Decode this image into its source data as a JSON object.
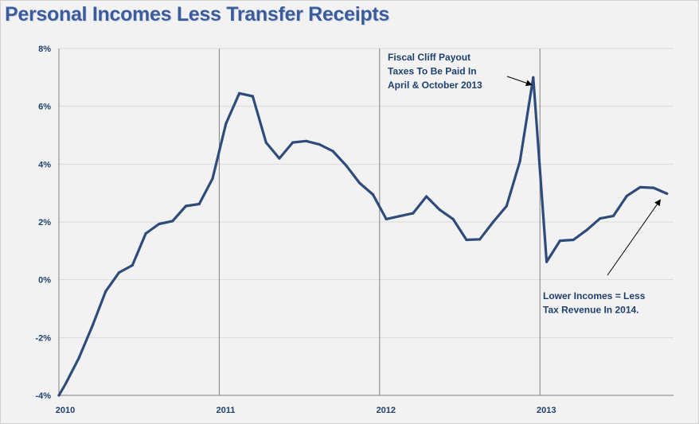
{
  "chart_data": {
    "type": "line",
    "title": "Personal Incomes Less Transfer Receipts",
    "xlabel": "",
    "ylabel": "",
    "ylim": [
      -4,
      8
    ],
    "yticks": [
      8,
      6,
      4,
      2,
      0,
      -2,
      -4
    ],
    "ytick_labels": [
      "8%",
      "6%",
      "4%",
      "2%",
      "0%",
      "-2%",
      "-4%"
    ],
    "xlim": [
      2010.0,
      2013.833
    ],
    "xticks": [
      2010,
      2011,
      2012,
      2013
    ],
    "xtick_labels": [
      "2010",
      "2011",
      "2012",
      "2013"
    ],
    "grid": true,
    "line_color": "#2e4b7a",
    "series": [
      {
        "name": "Personal Incomes Less Transfer Receipts",
        "x": [
          2010.0,
          2010.0417,
          2010.125,
          2010.2083,
          2010.2917,
          2010.375,
          2010.4583,
          2010.5417,
          2010.625,
          2010.7083,
          2010.7917,
          2010.875,
          2010.9583,
          2011.0417,
          2011.125,
          2011.2083,
          2011.2917,
          2011.375,
          2011.4583,
          2011.5417,
          2011.625,
          2011.7083,
          2011.7917,
          2011.875,
          2011.9583,
          2012.0417,
          2012.125,
          2012.2083,
          2012.2917,
          2012.375,
          2012.4583,
          2012.5417,
          2012.625,
          2012.7083,
          2012.7917,
          2012.875,
          2012.9583,
          2013.0417,
          2013.125,
          2013.2083,
          2013.2917,
          2013.375,
          2013.4583,
          2013.5417,
          2013.625,
          2013.7083,
          2013.7917
        ],
        "values": [
          -4.0,
          -3.6,
          -2.7,
          -1.6,
          -0.4,
          0.25,
          0.5,
          1.6,
          1.93,
          2.03,
          2.55,
          2.62,
          3.5,
          5.4,
          6.45,
          6.35,
          4.75,
          4.2,
          4.75,
          4.8,
          4.68,
          4.45,
          3.95,
          3.35,
          2.95,
          2.1,
          2.2,
          2.3,
          2.88,
          2.42,
          2.1,
          1.38,
          1.4,
          2.0,
          2.55,
          4.1,
          7.0,
          0.62,
          1.35,
          1.38,
          1.72,
          2.12,
          2.21,
          2.9,
          3.2,
          3.18,
          2.98
        ]
      }
    ],
    "annotations": [
      {
        "lines": [
          "Fiscal Cliff Payout",
          "Taxes To Be Paid In",
          "April & October 2013"
        ],
        "target_x": 2012.9583,
        "target_y": 6.8
      },
      {
        "lines": [
          "Lower Incomes = Less",
          "Tax Revenue In 2014."
        ],
        "target_x": 2013.7604,
        "target_y": 2.82
      }
    ]
  }
}
